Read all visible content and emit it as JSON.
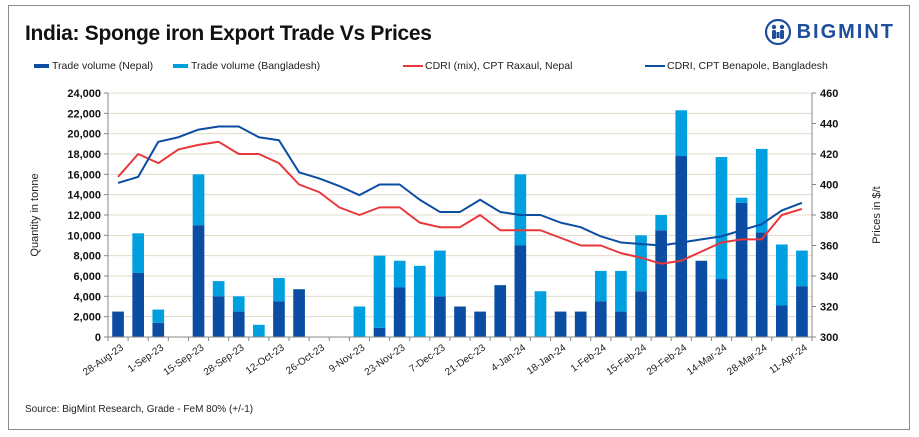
{
  "header": {
    "title": "India: Sponge iron Export Trade Vs Prices",
    "logo_text": "BIGMINT"
  },
  "source": "Source: BigMint Research, Grade - FeM 80% (+/-1)",
  "colors": {
    "nepal_bar": "#0a4da2",
    "bangladesh_bar": "#00a0e0",
    "raxaul_line": "#e8373a",
    "benapole_line": "#0a4da2",
    "grid": "#e2dccb",
    "logo": "#1f4e9c"
  },
  "chart_data": {
    "type": "bar",
    "subtype": "stacked bar + dual-axis line",
    "title": "India: Sponge iron Export Trade Vs Prices",
    "ylabel": "Quantity in tonne",
    "y2label": "Prices in $/t",
    "ylim": [
      0,
      24000
    ],
    "y2lim": [
      300,
      460
    ],
    "yticks": [
      "0",
      "2,000",
      "4,000",
      "6,000",
      "8,000",
      "10,000",
      "12,000",
      "14,000",
      "16,000",
      "18,000",
      "20,000",
      "22,000",
      "24,000"
    ],
    "y2ticks": [
      "300",
      "320",
      "340",
      "360",
      "380",
      "400",
      "420",
      "440",
      "460"
    ],
    "xtick_labels": [
      "28-Aug-23",
      "1-Sep-23",
      "15-Sep-23",
      "28-Sep-23",
      "12-Oct-23",
      "26-Oct-23",
      "9-Nov-23",
      "23-Nov-23",
      "7-Dec-23",
      "21-Dec-23",
      "4-Jan-24",
      "18-Jan-24",
      "1-Feb-24",
      "15-Feb-24",
      "29-Feb-24",
      "14-Mar-24",
      "28-Mar-24",
      "11-Apr-24"
    ],
    "grid": true,
    "legend_position": "top",
    "legend": [
      "Trade volume (Nepal)",
      "Trade volume (Bangladesh)",
      "CDRI (mix), CPT Raxaul, Nepal",
      "CDRI, CPT Benapole, Bangladesh"
    ],
    "series": [
      {
        "name": "Trade volume (Nepal)",
        "type": "bar",
        "axis": "left",
        "values": [
          2500,
          6300,
          1400,
          0,
          11000,
          4000,
          2500,
          0,
          3500,
          4700,
          0,
          0,
          0,
          900,
          4900,
          0,
          4000,
          3000,
          2500,
          5100,
          9000,
          0,
          2500,
          2500,
          3500,
          2500,
          4500,
          10500,
          17800,
          7500,
          5700,
          13200,
          10300,
          3100,
          5000
        ]
      },
      {
        "name": "Trade volume (Bangladesh)",
        "type": "bar",
        "axis": "left",
        "values": [
          0,
          3900,
          1300,
          0,
          5000,
          1500,
          1500,
          1200,
          2300,
          0,
          0,
          0,
          3000,
          7100,
          2600,
          7000,
          4500,
          0,
          0,
          0,
          7000,
          4500,
          0,
          0,
          3000,
          4000,
          5500,
          1500,
          4500,
          0,
          12000,
          500,
          8200,
          6000,
          3500
        ]
      },
      {
        "name": "CDRI (mix), CPT Raxaul, Nepal",
        "type": "line",
        "axis": "right",
        "values": [
          405,
          420,
          414,
          423,
          426,
          428,
          420,
          420,
          414,
          400,
          395,
          385,
          380,
          385,
          385,
          375,
          372,
          372,
          380,
          370,
          370,
          370,
          365,
          360,
          360,
          355,
          352,
          348,
          350,
          356,
          362,
          364,
          364,
          380,
          384
        ]
      },
      {
        "name": "CDRI, CPT Benapole, Bangladesh",
        "type": "line",
        "axis": "right",
        "values": [
          401,
          405,
          428,
          431,
          436,
          438,
          438,
          431,
          429,
          408,
          404,
          399,
          393,
          400,
          400,
          390,
          382,
          382,
          390,
          382,
          380,
          380,
          375,
          372,
          366,
          362,
          361,
          360,
          362,
          364,
          366,
          370,
          374,
          383,
          388
        ]
      }
    ]
  }
}
